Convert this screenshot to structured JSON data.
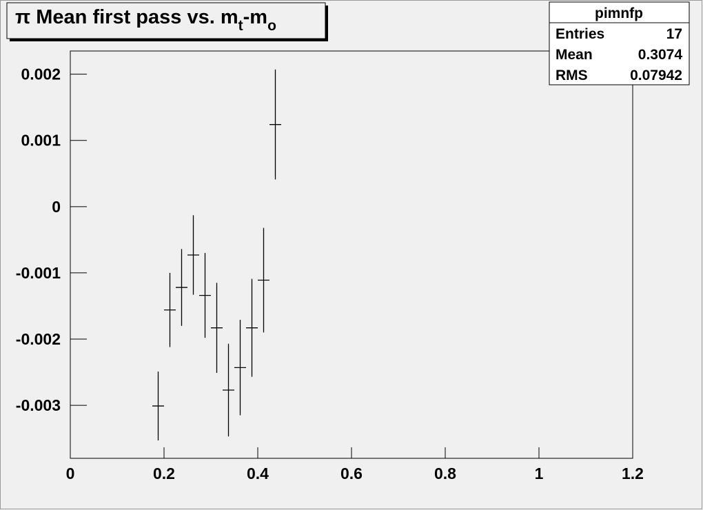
{
  "chart_data": {
    "type": "errorbar",
    "title": [
      "π Mean first pass vs. m",
      "t",
      "-m",
      "o"
    ],
    "x": [
      0.1875,
      0.2125,
      0.2375,
      0.2625,
      0.2875,
      0.3125,
      0.3375,
      0.3625,
      0.3875,
      0.4125,
      0.4375
    ],
    "xerr": [
      0.0125,
      0.0125,
      0.0125,
      0.0125,
      0.0125,
      0.0125,
      0.0125,
      0.0125,
      0.0125,
      0.0125,
      0.0125
    ],
    "values": [
      -0.00301,
      -0.00156,
      -0.00122,
      -0.00073,
      -0.00134,
      -0.00183,
      -0.00277,
      -0.00243,
      -0.00183,
      -0.00111,
      0.00124
    ],
    "yerr": [
      0.00052,
      0.00056,
      0.00058,
      0.0006,
      0.00064,
      0.00068,
      0.0007,
      0.00072,
      0.00074,
      0.00079,
      0.00083
    ],
    "color": "#000000",
    "xlim": [
      0,
      1.2
    ],
    "ylim": [
      -0.0038,
      0.00235
    ],
    "xticks": [
      0,
      0.2,
      0.4,
      0.6,
      0.8,
      1,
      1.2
    ],
    "yticks": [
      0.002,
      0.001,
      0,
      -0.001,
      -0.002,
      -0.003
    ],
    "stats": {
      "name": "pimnfp",
      "rows": [
        [
          "Entries",
          17
        ],
        [
          "Mean",
          0.3074
        ],
        [
          "RMS",
          0.07942
        ]
      ]
    }
  }
}
